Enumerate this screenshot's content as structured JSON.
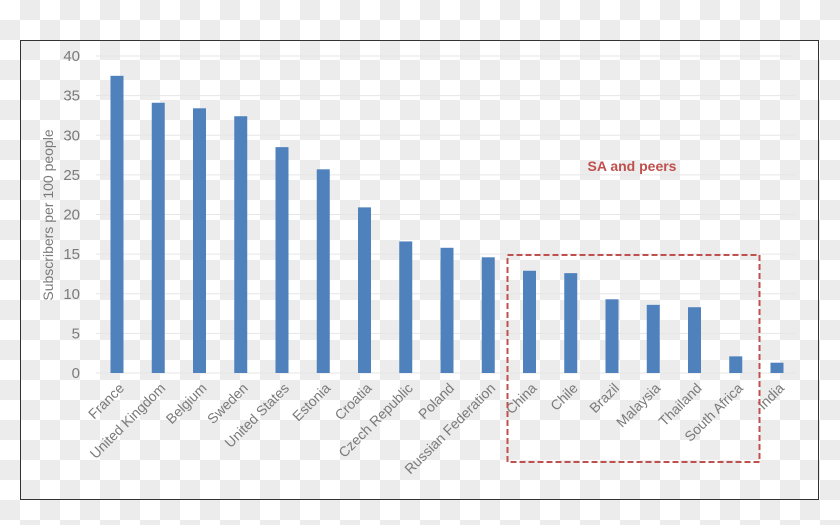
{
  "chart_data": {
    "type": "bar",
    "title": "",
    "xlabel": "",
    "ylabel": "Subscribers per 100 people",
    "ylim": [
      0,
      40
    ],
    "yticks": [
      0,
      5,
      10,
      15,
      20,
      25,
      30,
      35,
      40
    ],
    "grid": true,
    "legend": null,
    "categories": [
      "France",
      "United Kingdom",
      "Belgium",
      "Sweden",
      "United States",
      "Estonia",
      "Croatia",
      "Czech Republic",
      "Poland",
      "Russian Federation",
      "China",
      "Chile",
      "Brazil",
      "Malaysia",
      "Thailand",
      "South Africa",
      "India"
    ],
    "values": [
      37.5,
      34.1,
      33.4,
      32.4,
      28.5,
      25.7,
      20.9,
      16.6,
      15.8,
      14.6,
      12.9,
      12.6,
      9.3,
      8.6,
      8.3,
      2.1,
      1.3
    ],
    "bar_color": "#4f81bd",
    "annotations": [
      {
        "type": "dashed-box",
        "label": "SA and peers",
        "color": "#c0504d",
        "covers": [
          "China",
          "Chile",
          "Brazil",
          "Malaysia",
          "Thailand",
          "South Africa"
        ]
      }
    ]
  }
}
